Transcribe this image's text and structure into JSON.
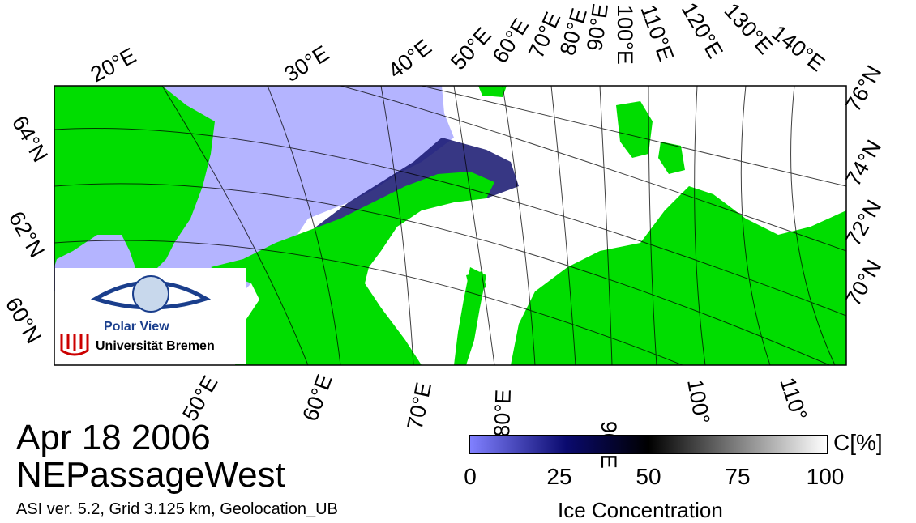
{
  "date": "Apr 18 2006",
  "region": "NEPassageWest",
  "meta_line": "ASI ver. 5.2,  Grid 3.125 km, Geolocation_UB",
  "logo": {
    "title": "Polar View",
    "subtitle": "Universität Bremen"
  },
  "top_longitude_labels": [
    "20°E",
    "30°E",
    "40°E",
    "50°E",
    "60°E",
    "70°E",
    "80°E",
    "90°E",
    "100°E",
    "110°E",
    "120°E",
    "130°E",
    "140°E"
  ],
  "left_latitude_labels": [
    "64°N",
    "62°N",
    "60°N"
  ],
  "right_latitude_labels": [
    "76°N",
    "74°N",
    "72°N",
    "70°N"
  ],
  "bottom_longitude_labels": [
    "50°E",
    "60°E",
    "70°E",
    "80°E",
    "90°E",
    "100°",
    "110°"
  ],
  "colorbar": {
    "unit": "C[%]",
    "title": "Ice Concentration",
    "ticks": [
      "0",
      "25",
      "50",
      "75",
      "100"
    ],
    "colors": [
      "#8080ff",
      "#0a0a6e",
      "#000000",
      "#ffffff"
    ]
  },
  "colors": {
    "land": "#00dd00",
    "open_water": "#b4b4ff",
    "sea_ice": "#ffffff"
  }
}
